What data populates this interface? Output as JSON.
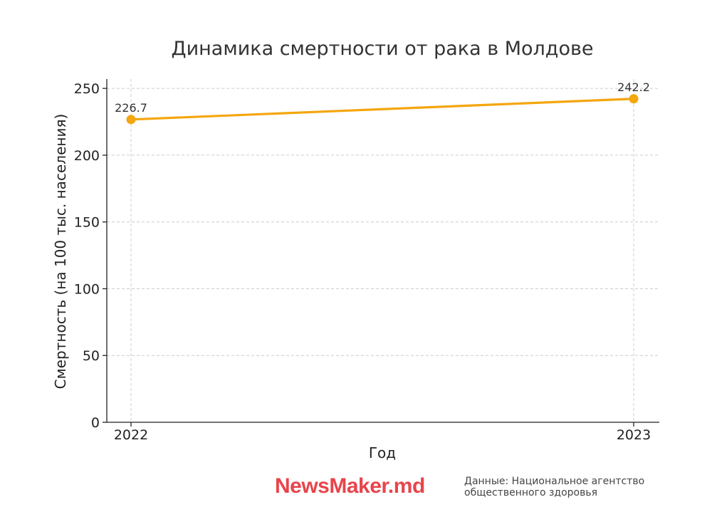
{
  "chart_data": {
    "type": "line",
    "title": "Динамика смертности от рака в Молдове",
    "xlabel": "Год",
    "ylabel": "Смертность (на 100 тыс. населения)",
    "categories": [
      "2022",
      "2023"
    ],
    "series": [
      {
        "values": [
          226.7,
          242.2
        ],
        "labels": [
          "226.7",
          "242.2"
        ],
        "color": "#f4a60d"
      }
    ],
    "ylim": [
      0,
      257
    ],
    "yticks": [
      0,
      50,
      100,
      150,
      200,
      250
    ],
    "grid": true
  },
  "footer": {
    "brand": "NewsMaker.md",
    "brand_color": "#e8444c",
    "source_line1": "Данные: Национальное агентство",
    "source_line2": "общественного здоровья"
  }
}
